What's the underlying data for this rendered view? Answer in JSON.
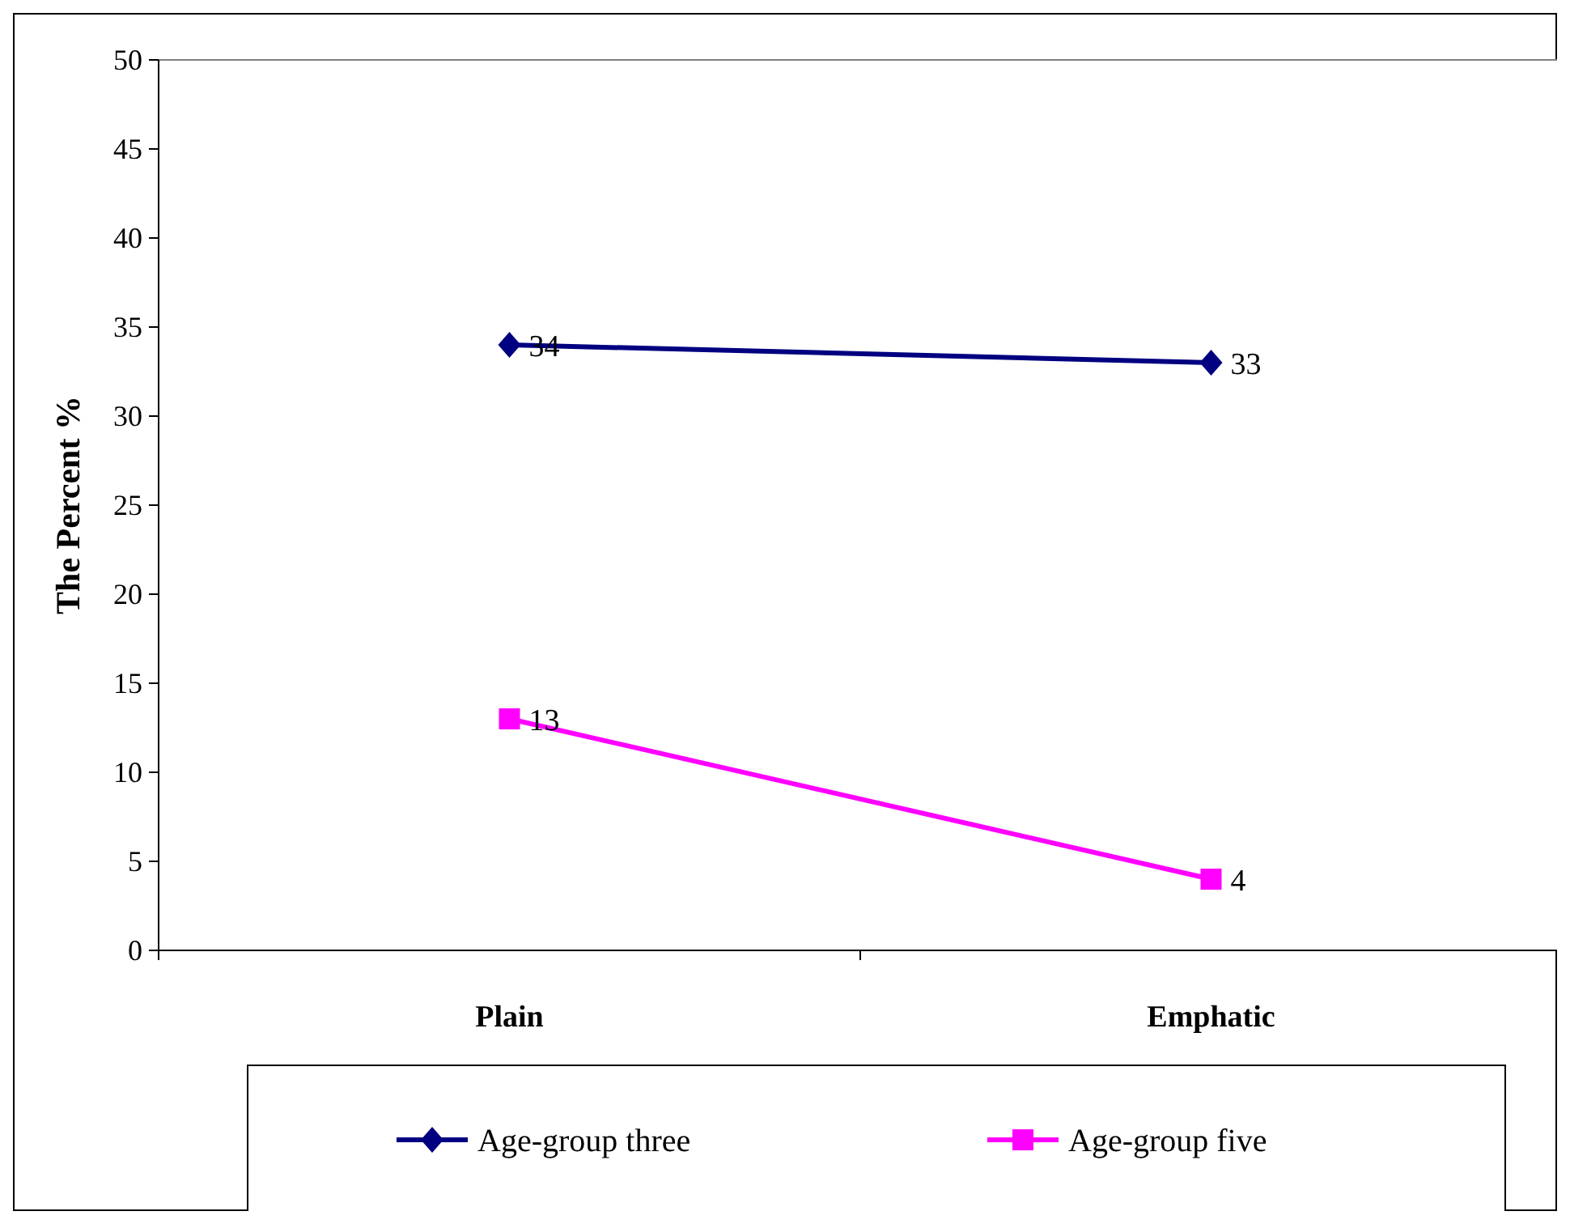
{
  "chart_data": {
    "type": "line",
    "ylabel": "The Percent %",
    "categories": [
      "Plain",
      "Emphatic"
    ],
    "series": [
      {
        "name": "Age-group three",
        "color": "#000080",
        "values": [
          34,
          33
        ],
        "marker": "diamond"
      },
      {
        "name": "Age-group five",
        "color": "#ff00ff",
        "values": [
          13,
          4
        ],
        "marker": "square"
      }
    ],
    "ylim": [
      0,
      50
    ],
    "yticks": [
      0,
      5,
      10,
      15,
      20,
      25,
      30,
      35,
      40,
      45,
      50
    ],
    "grid": false,
    "legend": "bottom",
    "data_labels": true,
    "line_style": "solid"
  }
}
